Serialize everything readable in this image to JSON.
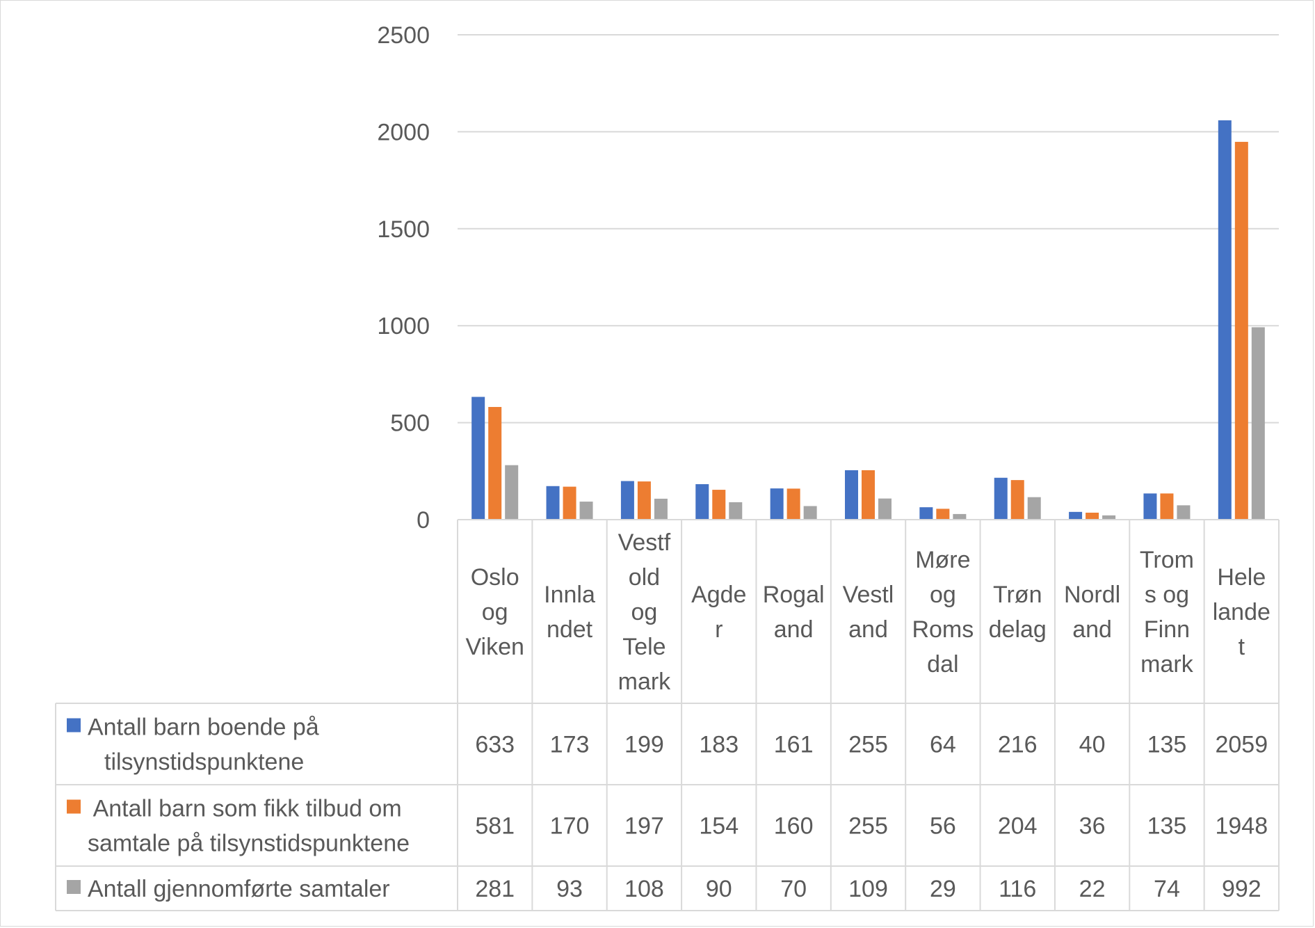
{
  "chart_data": {
    "type": "bar",
    "title": "",
    "xlabel": "",
    "ylabel": "",
    "ylim": [
      0,
      2500
    ],
    "yticks": [
      0,
      500,
      1000,
      1500,
      2000,
      2500
    ],
    "grid": true,
    "legend_placement": "data-table",
    "categories": [
      [
        "Oslo",
        "og",
        "Viken"
      ],
      [
        "Innla",
        "ndet"
      ],
      [
        "Vestf",
        "old",
        "og",
        "Tele",
        "mark"
      ],
      [
        "Agde",
        "r"
      ],
      [
        "Rogal",
        "and"
      ],
      [
        "Vestl",
        "and"
      ],
      [
        "Møre",
        "og",
        "Roms",
        "dal"
      ],
      [
        "Trøn",
        "delag"
      ],
      [
        "Nordl",
        "and"
      ],
      [
        "Trom",
        "s og",
        "Finn",
        "mark"
      ],
      [
        "Hele",
        "lande",
        "t"
      ]
    ],
    "series": [
      {
        "name_lines": [
          "Antall barn boende på",
          "tilsynstidspunktene"
        ],
        "color": "#4472c4",
        "values": [
          633,
          173,
          199,
          183,
          161,
          255,
          64,
          216,
          40,
          135,
          2059
        ]
      },
      {
        "name_lines": [
          " Antall barn som fikk tilbud om",
          "samtale på tilsynstidspunktene"
        ],
        "color": "#ed7d31",
        "values": [
          581,
          170,
          197,
          154,
          160,
          255,
          56,
          204,
          36,
          135,
          1948
        ]
      },
      {
        "name_lines": [
          "Antall gjennomførte samtaler"
        ],
        "color": "#a5a5a5",
        "values": [
          281,
          93,
          108,
          90,
          70,
          109,
          29,
          116,
          22,
          74,
          992
        ]
      }
    ]
  }
}
